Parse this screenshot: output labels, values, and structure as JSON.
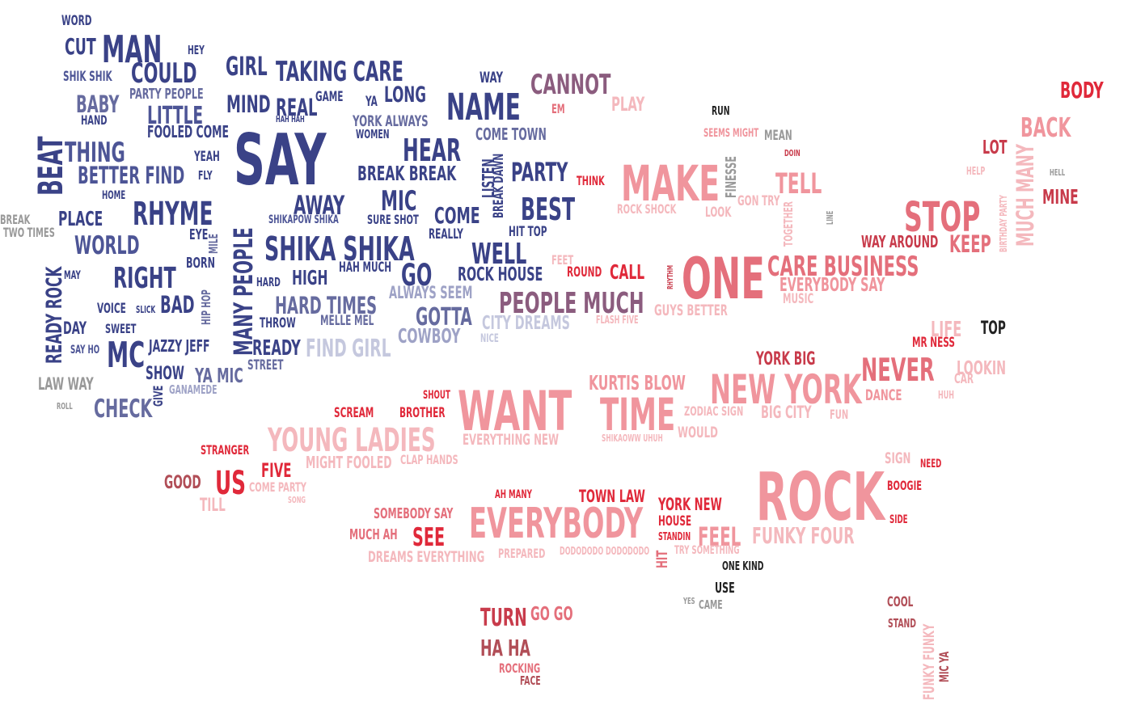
{
  "palette": {
    "navy": "#3a4287",
    "blue": "#4d5596",
    "slate": "#666b9f",
    "lavender": "#9ea2c6",
    "pale_lavender": "#c5c8de",
    "gray": "#999999",
    "mauve": "#8b5c7e",
    "red": "#e0293a",
    "crimson": "#c83b4b",
    "rose": "#e46f7b",
    "pink": "#f0959d",
    "light_pink": "#f4b8bd",
    "brown_red": "#b14e57",
    "dark": "#222222"
  },
  "words": [
    {
      "text": "WORD",
      "color": "navy"
    },
    {
      "text": "CUT",
      "color": "navy"
    },
    {
      "text": "MAN",
      "color": "navy"
    },
    {
      "text": "HEY",
      "color": "navy"
    },
    {
      "text": "GIRL",
      "color": "navy"
    },
    {
      "text": "TAKING CARE",
      "color": "navy"
    },
    {
      "text": "SHIK SHIK",
      "color": "blue"
    },
    {
      "text": "COULD",
      "color": "navy"
    },
    {
      "text": "WAY",
      "color": "navy"
    },
    {
      "text": "CANNOT",
      "color": "mauve"
    },
    {
      "text": "BODY",
      "color": "red"
    },
    {
      "text": "BABY",
      "color": "slate"
    },
    {
      "text": "PARTY PEOPLE",
      "color": "slate"
    },
    {
      "text": "MIND",
      "color": "navy"
    },
    {
      "text": "REAL",
      "color": "navy"
    },
    {
      "text": "GAME",
      "color": "navy"
    },
    {
      "text": "YA",
      "color": "navy"
    },
    {
      "text": "LONG",
      "color": "navy"
    },
    {
      "text": "NAME",
      "color": "navy"
    },
    {
      "text": "EM",
      "color": "rose"
    },
    {
      "text": "PLAY",
      "color": "light_pink"
    },
    {
      "text": "RUN",
      "color": "dark"
    },
    {
      "text": "BACK",
      "color": "pink"
    },
    {
      "text": "HAND",
      "color": "navy"
    },
    {
      "text": "LITTLE",
      "color": "blue"
    },
    {
      "text": "HAH HAH",
      "color": "navy"
    },
    {
      "text": "YORK ALWAYS",
      "color": "slate"
    },
    {
      "text": "FOOLED COME",
      "color": "navy"
    },
    {
      "text": "WOMEN",
      "color": "navy"
    },
    {
      "text": "COME TOWN",
      "color": "slate"
    },
    {
      "text": "SEEMS MIGHT",
      "color": "pink"
    },
    {
      "text": "MEAN",
      "color": "gray"
    },
    {
      "text": "LOT",
      "color": "crimson"
    },
    {
      "text": "BEAT",
      "color": "navy"
    },
    {
      "text": "THING",
      "color": "blue"
    },
    {
      "text": "SAY",
      "color": "navy"
    },
    {
      "text": "HEAR",
      "color": "navy"
    },
    {
      "text": "DOIN",
      "color": "crimson"
    },
    {
      "text": "YEAH",
      "color": "navy"
    },
    {
      "text": "BETTER FIND",
      "color": "blue"
    },
    {
      "text": "FLY",
      "color": "navy"
    },
    {
      "text": "BREAK BREAK",
      "color": "navy"
    },
    {
      "text": "LISTEN",
      "color": "navy"
    },
    {
      "text": "BREAK DAWN",
      "color": "navy"
    },
    {
      "text": "PARTY",
      "color": "navy"
    },
    {
      "text": "THINK",
      "color": "red"
    },
    {
      "text": "MAKE",
      "color": "pink"
    },
    {
      "text": "FINESSE",
      "color": "gray"
    },
    {
      "text": "TELL",
      "color": "pink"
    },
    {
      "text": "HELP",
      "color": "light_pink"
    },
    {
      "text": "HELL",
      "color": "gray"
    },
    {
      "text": "HOME",
      "color": "navy"
    },
    {
      "text": "AWAY",
      "color": "navy"
    },
    {
      "text": "MIC",
      "color": "navy"
    },
    {
      "text": "COME",
      "color": "navy"
    },
    {
      "text": "BEST",
      "color": "navy"
    },
    {
      "text": "GON TRY",
      "color": "light_pink"
    },
    {
      "text": "MUCH MANY",
      "color": "light_pink"
    },
    {
      "text": "BIRTHDAY PARTY",
      "color": "light_pink"
    },
    {
      "text": "MINE",
      "color": "crimson"
    },
    {
      "text": "RHYME",
      "color": "navy"
    },
    {
      "text": "PLACE",
      "color": "navy"
    },
    {
      "text": "MANY PEOPLE",
      "color": "navy"
    },
    {
      "text": "SHIKAPOW SHIKA",
      "color": "blue"
    },
    {
      "text": "SURE SHOT",
      "color": "navy"
    },
    {
      "text": "ROCK SHOCK",
      "color": "light_pink"
    },
    {
      "text": "LOOK",
      "color": "light_pink"
    },
    {
      "text": "TOGETHER",
      "color": "light_pink"
    },
    {
      "text": "LINE",
      "color": "gray"
    },
    {
      "text": "STOP",
      "color": "rose"
    },
    {
      "text": "BREAK",
      "color": "gray"
    },
    {
      "text": "TWO TIMES",
      "color": "gray"
    },
    {
      "text": "EYE",
      "color": "navy"
    },
    {
      "text": "MILE",
      "color": "slate"
    },
    {
      "text": "WORLD",
      "color": "blue"
    },
    {
      "text": "SHIKA SHIKA",
      "color": "navy"
    },
    {
      "text": "REALLY",
      "color": "navy"
    },
    {
      "text": "HIT TOP",
      "color": "navy"
    },
    {
      "text": "WAY AROUND",
      "color": "crimson"
    },
    {
      "text": "KEEP",
      "color": "rose"
    },
    {
      "text": "READY ROCK",
      "color": "navy"
    },
    {
      "text": "BORN",
      "color": "navy"
    },
    {
      "text": "WELL",
      "color": "navy"
    },
    {
      "text": "FEET",
      "color": "light_pink"
    },
    {
      "text": "ONE",
      "color": "rose"
    },
    {
      "text": "CARE BUSINESS",
      "color": "rose"
    },
    {
      "text": "MAY",
      "color": "navy"
    },
    {
      "text": "RIGHT",
      "color": "navy"
    },
    {
      "text": "HARD",
      "color": "navy"
    },
    {
      "text": "HIGH",
      "color": "navy"
    },
    {
      "text": "HAH MUCH",
      "color": "navy"
    },
    {
      "text": "GO",
      "color": "navy"
    },
    {
      "text": "ROCK HOUSE",
      "color": "navy"
    },
    {
      "text": "ROUND",
      "color": "red"
    },
    {
      "text": "CALL",
      "color": "red"
    },
    {
      "text": "RHYTHM",
      "color": "crimson"
    },
    {
      "text": "EVERYBODY SAY",
      "color": "pink"
    },
    {
      "text": "HIP HOP",
      "color": "slate"
    },
    {
      "text": "ALWAYS SEEM",
      "color": "lavender"
    },
    {
      "text": "PEOPLE MUCH",
      "color": "mauve"
    },
    {
      "text": "MUSIC",
      "color": "light_pink"
    },
    {
      "text": "VOICE",
      "color": "navy"
    },
    {
      "text": "SLICK",
      "color": "navy"
    },
    {
      "text": "BAD",
      "color": "navy"
    },
    {
      "text": "HARD TIMES",
      "color": "slate"
    },
    {
      "text": "GUYS BETTER",
      "color": "light_pink"
    },
    {
      "text": "FLASH FIVE",
      "color": "light_pink"
    },
    {
      "text": "THROW",
      "color": "navy"
    },
    {
      "text": "MELLE MEL",
      "color": "slate"
    },
    {
      "text": "GOTTA",
      "color": "slate"
    },
    {
      "text": "CITY DREAMS",
      "color": "pale_lavender"
    },
    {
      "text": "DAY",
      "color": "navy"
    },
    {
      "text": "SWEET",
      "color": "navy"
    },
    {
      "text": "LIFE",
      "color": "light_pink"
    },
    {
      "text": "TOP",
      "color": "dark"
    },
    {
      "text": "COWBOY",
      "color": "lavender"
    },
    {
      "text": "NICE",
      "color": "pale_lavender"
    },
    {
      "text": "MR NESS",
      "color": "red"
    },
    {
      "text": "SAY HO",
      "color": "blue"
    },
    {
      "text": "MC",
      "color": "navy"
    },
    {
      "text": "JAZZY JEFF",
      "color": "navy"
    },
    {
      "text": "READY",
      "color": "navy"
    },
    {
      "text": "FIND GIRL",
      "color": "pale_lavender"
    },
    {
      "text": "YORK BIG",
      "color": "crimson"
    },
    {
      "text": "STREET",
      "color": "slate"
    },
    {
      "text": "NEVER",
      "color": "rose"
    },
    {
      "text": "LOOKIN",
      "color": "light_pink"
    },
    {
      "text": "SHOW",
      "color": "navy"
    },
    {
      "text": "YA MIC",
      "color": "slate"
    },
    {
      "text": "CAR",
      "color": "light_pink"
    },
    {
      "text": "LAW WAY",
      "color": "gray"
    },
    {
      "text": "KURTIS BLOW",
      "color": "pink"
    },
    {
      "text": "NEW YORK",
      "color": "pink"
    },
    {
      "text": "GIVE",
      "color": "navy"
    },
    {
      "text": "GANAMEDE",
      "color": "lavender"
    },
    {
      "text": "DANCE",
      "color": "pink"
    },
    {
      "text": "HUH",
      "color": "light_pink"
    },
    {
      "text": "SHOUT",
      "color": "red"
    },
    {
      "text": "ROLL",
      "color": "gray"
    },
    {
      "text": "CHECK",
      "color": "slate"
    },
    {
      "text": "WANT",
      "color": "pink"
    },
    {
      "text": "TIME",
      "color": "pink"
    },
    {
      "text": "ZODIAC SIGN",
      "color": "light_pink"
    },
    {
      "text": "BIG CITY",
      "color": "light_pink"
    },
    {
      "text": "FUN",
      "color": "light_pink"
    },
    {
      "text": "SCREAM",
      "color": "red"
    },
    {
      "text": "BROTHER",
      "color": "red"
    },
    {
      "text": "YOUNG LADIES",
      "color": "light_pink"
    },
    {
      "text": "EVERYTHING NEW",
      "color": "light_pink"
    },
    {
      "text": "SHIKAOWW UHUH",
      "color": "light_pink"
    },
    {
      "text": "WOULD",
      "color": "light_pink"
    },
    {
      "text": "STRANGER",
      "color": "red"
    },
    {
      "text": "FIVE",
      "color": "red"
    },
    {
      "text": "MIGHT FOOLED",
      "color": "light_pink"
    },
    {
      "text": "CLAP HANDS",
      "color": "light_pink"
    },
    {
      "text": "SIGN",
      "color": "light_pink"
    },
    {
      "text": "NEED",
      "color": "red"
    },
    {
      "text": "GOOD",
      "color": "brown_red"
    },
    {
      "text": "US",
      "color": "red"
    },
    {
      "text": "COME PARTY",
      "color": "light_pink"
    },
    {
      "text": "SONG",
      "color": "light_pink"
    },
    {
      "text": "ROCK",
      "color": "pink"
    },
    {
      "text": "BOOGIE",
      "color": "red"
    },
    {
      "text": "TILL",
      "color": "light_pink"
    },
    {
      "text": "AH MANY",
      "color": "red"
    },
    {
      "text": "TOWN LAW",
      "color": "red"
    },
    {
      "text": "YORK NEW",
      "color": "red"
    },
    {
      "text": "SOMEBODY SAY",
      "color": "rose"
    },
    {
      "text": "EVERYBODY",
      "color": "pink"
    },
    {
      "text": "HOUSE",
      "color": "red"
    },
    {
      "text": "SIDE",
      "color": "red"
    },
    {
      "text": "MUCH AH",
      "color": "rose"
    },
    {
      "text": "SEE",
      "color": "red"
    },
    {
      "text": "STANDIN",
      "color": "red"
    },
    {
      "text": "FEEL",
      "color": "pink"
    },
    {
      "text": "FUNKY FOUR",
      "color": "light_pink"
    },
    {
      "text": "HIT",
      "color": "rose"
    },
    {
      "text": "TRY SOMETHING",
      "color": "light_pink"
    },
    {
      "text": "DREAMS EVERYTHING",
      "color": "light_pink"
    },
    {
      "text": "PREPARED",
      "color": "light_pink"
    },
    {
      "text": "DODODODO DODODODO",
      "color": "light_pink"
    },
    {
      "text": "ONE KIND",
      "color": "dark"
    },
    {
      "text": "USE",
      "color": "dark"
    },
    {
      "text": "YES",
      "color": "gray"
    },
    {
      "text": "CAME",
      "color": "gray"
    },
    {
      "text": "COOL",
      "color": "brown_red"
    },
    {
      "text": "TURN",
      "color": "crimson"
    },
    {
      "text": "GO GO",
      "color": "rose"
    },
    {
      "text": "STAND",
      "color": "brown_red"
    },
    {
      "text": "FUNKY FUNKY",
      "color": "light_pink"
    },
    {
      "text": "HA HA",
      "color": "brown_red"
    },
    {
      "text": "MIC YA",
      "color": "brown_red"
    },
    {
      "text": "ROCKING",
      "color": "rose"
    },
    {
      "text": "FACE",
      "color": "brown_red"
    }
  ]
}
